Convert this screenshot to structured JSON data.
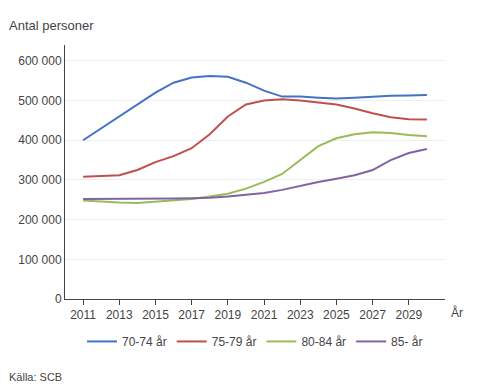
{
  "chart_data": {
    "type": "line",
    "ylabel": "Antal personer",
    "xlabel": "År",
    "annotations": [
      "Källa: SCB"
    ],
    "x": [
      2011,
      2012,
      2013,
      2014,
      2015,
      2016,
      2017,
      2018,
      2019,
      2020,
      2021,
      2022,
      2023,
      2024,
      2025,
      2026,
      2027,
      2028,
      2029,
      2030
    ],
    "series": [
      {
        "name": "70-74 år",
        "color": "#4472C4",
        "values": [
          400000,
          430000,
          460000,
          490000,
          520000,
          545000,
          558000,
          562000,
          560000,
          545000,
          525000,
          510000,
          510000,
          507000,
          505000,
          507000,
          510000,
          512000,
          513000,
          514000
        ]
      },
      {
        "name": "75-79 år",
        "color": "#C0504D",
        "values": [
          308000,
          310000,
          312000,
          325000,
          345000,
          360000,
          380000,
          415000,
          460000,
          490000,
          500000,
          503000,
          500000,
          495000,
          490000,
          480000,
          468000,
          458000,
          453000,
          452000
        ]
      },
      {
        "name": "80-84 år",
        "color": "#9BBB59",
        "values": [
          248000,
          245000,
          243000,
          242000,
          245000,
          248000,
          252000,
          258000,
          265000,
          278000,
          295000,
          315000,
          350000,
          385000,
          405000,
          415000,
          420000,
          418000,
          413000,
          410000
        ]
      },
      {
        "name": "85- år",
        "color": "#8064A2",
        "values": [
          252000,
          252000,
          252000,
          253000,
          253000,
          253000,
          254000,
          255000,
          258000,
          262000,
          267000,
          275000,
          285000,
          295000,
          303000,
          312000,
          325000,
          350000,
          368000,
          378000
        ]
      }
    ],
    "xlim": [
      2010,
      2031
    ],
    "xticks": [
      2011,
      2013,
      2015,
      2017,
      2019,
      2021,
      2023,
      2025,
      2027,
      2029
    ],
    "ylim": [
      0,
      640000
    ],
    "yticks": [
      0,
      {
        "value": 100000,
        "label": "100 000"
      },
      {
        "value": 200000,
        "label": "200 000"
      },
      {
        "value": 300000,
        "label": "300 000"
      },
      {
        "value": 400000,
        "label": "400 000"
      },
      {
        "value": 500000,
        "label": "500 000"
      },
      {
        "value": 600000,
        "label": "600 000"
      }
    ],
    "grid": "y",
    "legend": "bottom"
  }
}
